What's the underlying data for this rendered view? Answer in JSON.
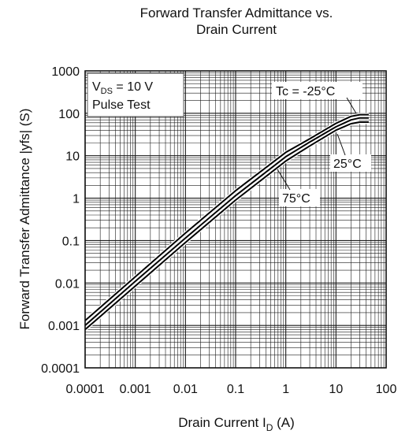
{
  "chart_data": {
    "type": "line",
    "title_lines": [
      "Forward Transfer Admittance vs.",
      "Drain Current"
    ],
    "xlabel": {
      "main": "Drain Current  I",
      "sub": "D",
      "unit": "  (A)"
    },
    "ylabel": "Forward Transfer Admittance  |yfs|  (S)",
    "x_scale": "log",
    "y_scale": "log",
    "xlim": [
      0.0001,
      100
    ],
    "ylim": [
      0.0001,
      1000
    ],
    "grid": true,
    "x_ticks": [
      {
        "value": 0.0001,
        "label": "0.0001"
      },
      {
        "value": 0.001,
        "label": "0.001"
      },
      {
        "value": 0.01,
        "label": "0.01"
      },
      {
        "value": 0.1,
        "label": "0.1"
      },
      {
        "value": 1,
        "label": "1"
      },
      {
        "value": 10,
        "label": "10"
      },
      {
        "value": 100,
        "label": "100"
      }
    ],
    "y_ticks": [
      {
        "value": 0.0001,
        "label": "0.0001"
      },
      {
        "value": 0.001,
        "label": "0.001"
      },
      {
        "value": 0.01,
        "label": "0.01"
      },
      {
        "value": 0.1,
        "label": "0.1"
      },
      {
        "value": 1,
        "label": "1"
      },
      {
        "value": 10,
        "label": "10"
      },
      {
        "value": 100,
        "label": "100"
      },
      {
        "value": 1000,
        "label": "1000"
      }
    ],
    "conditions": {
      "line1_main": "V",
      "line1_sub": "DS",
      "line1_rest": " = 10 V",
      "line2": "Pulse Test"
    },
    "series": [
      {
        "name": "Tc = -25°C",
        "x": [
          0.0001,
          0.001,
          0.01,
          0.1,
          1,
          3,
          10,
          20,
          30,
          45
        ],
        "y": [
          0.0013,
          0.014,
          0.15,
          1.5,
          12,
          25,
          58,
          85,
          93,
          93
        ]
      },
      {
        "name": "25°C",
        "x": [
          0.0001,
          0.001,
          0.01,
          0.1,
          1,
          3,
          10,
          20,
          30,
          45
        ],
        "y": [
          0.001,
          0.011,
          0.115,
          1.15,
          9.5,
          21,
          48,
          70,
          78,
          78
        ]
      },
      {
        "name": "75°C",
        "x": [
          0.0001,
          0.001,
          0.01,
          0.1,
          1,
          3,
          10,
          20,
          30,
          45
        ],
        "y": [
          0.0008,
          0.0085,
          0.09,
          0.9,
          7.5,
          17,
          40,
          57,
          62,
          62
        ]
      }
    ]
  }
}
